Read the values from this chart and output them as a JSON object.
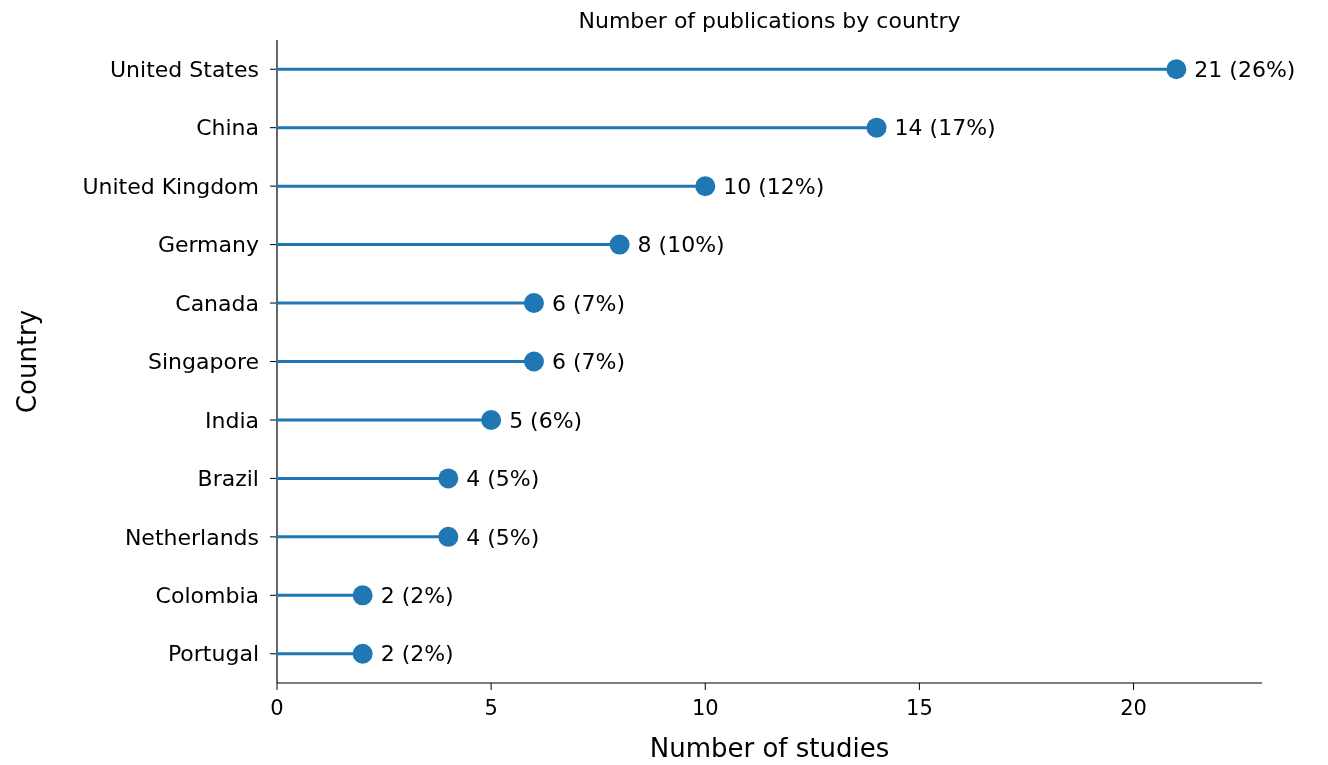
{
  "chart_data": {
    "type": "lollipop",
    "orientation": "horizontal",
    "title": "Number of publications by country",
    "xlabel": "Number of studies",
    "ylabel": "Country",
    "categories": [
      "United States",
      "China",
      "United Kingdom",
      "Germany",
      "Canada",
      "Singapore",
      "India",
      "Brazil",
      "Netherlands",
      "Colombia",
      "Portugal"
    ],
    "values": [
      21,
      14,
      10,
      8,
      6,
      6,
      5,
      4,
      4,
      2,
      2
    ],
    "value_labels": [
      "21 (26%)",
      "14 (17%)",
      "10 (12%)",
      "8 (10%)",
      "6 (7%)",
      "6 (7%)",
      "5 (6%)",
      "4 (5%)",
      "4 (5%)",
      "2 (2%)",
      "2 (2%)"
    ],
    "color": "#1f77b4",
    "marker": "circle",
    "xlim": [
      0,
      23
    ],
    "xticks": [
      0,
      5,
      10,
      15,
      20
    ]
  }
}
